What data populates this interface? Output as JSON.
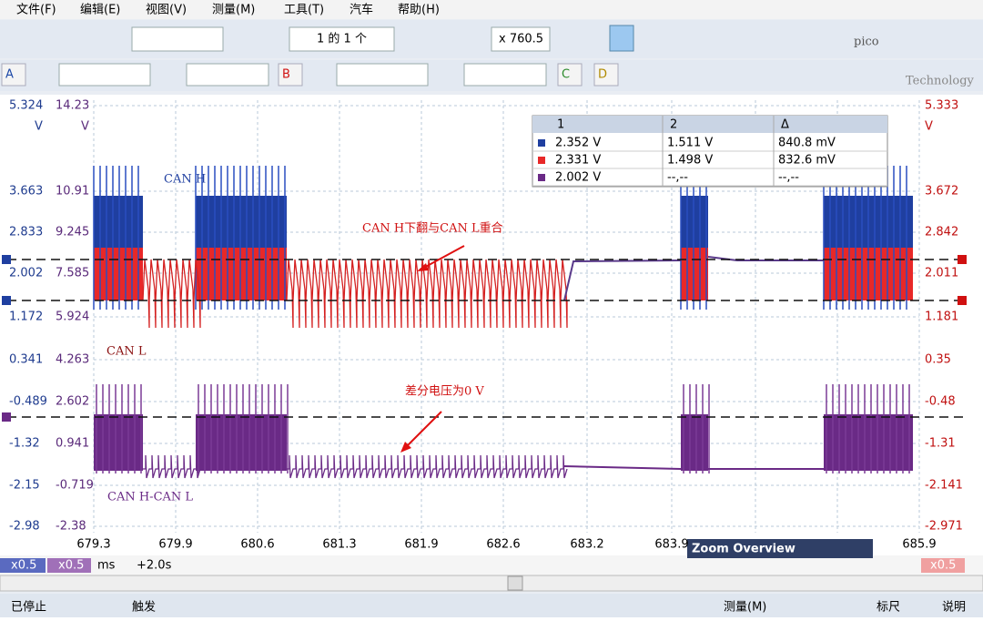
{
  "menu": [
    "文件(F)",
    "编辑(E)",
    "视图(V)",
    "测量(M)",
    "工具(T)",
    "汽车",
    "帮助(H)"
  ],
  "toolbar": {
    "page": "1 的 1 个",
    "zoom": "x 760.5"
  },
  "logo": {
    "brand": "pico",
    "sub": "Technology"
  },
  "channels": [
    "A",
    "B",
    "C",
    "D"
  ],
  "axes": {
    "left_unit": "V",
    "left2_unit": "V",
    "right_unit": "V",
    "left": [
      "5.324",
      "3.663",
      "2.833",
      "2.002",
      "1.172",
      "0.341",
      "-0.489",
      "-1.32",
      "-2.15",
      "-2.98"
    ],
    "left2": [
      "14.23",
      "10.91",
      "9.245",
      "7.585",
      "5.924",
      "4.263",
      "2.602",
      "0.941",
      "-0.719",
      "-2.38"
    ],
    "right": [
      "5.333",
      "3.672",
      "2.842",
      "2.011",
      "1.181",
      "0.35",
      "-0.48",
      "-1.31",
      "-2.141",
      "-2.971"
    ],
    "x": [
      "679.3",
      "679.9",
      "680.6",
      "681.3",
      "681.9",
      "682.6",
      "683.2",
      "683.9",
      "685.9"
    ]
  },
  "measurements": {
    "header": [
      "1",
      "2",
      "Δ"
    ],
    "rows": [
      [
        "2.352 V",
        "1.511 V",
        "840.8 mV"
      ],
      [
        "2.331 V",
        "1.498 V",
        "832.6 mV"
      ],
      [
        "2.002 V",
        "--,--",
        "--,--"
      ]
    ]
  },
  "annotations": [
    "CAN H",
    "CAN H下翻与CAN L重合",
    "CAN L",
    "差分电压为0 V",
    "CAN H-CAN L"
  ],
  "zoom_overview": "Zoom Overview",
  "footer": {
    "scale_a": "x0.5",
    "scale_b": "x0.5",
    "unit": "ms",
    "offset": "+2.0s",
    "scale_right": "x0.5"
  },
  "status": [
    "已停止",
    "触发",
    "测量(M)",
    "标尺",
    "说明"
  ]
}
